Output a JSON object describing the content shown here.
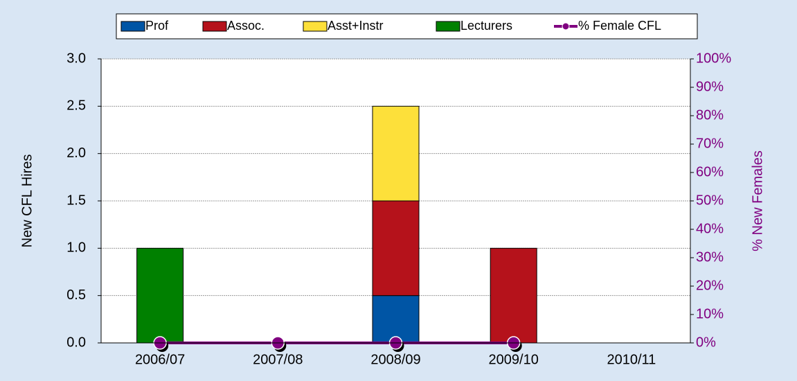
{
  "chart_data": {
    "type": "bar",
    "stacked": true,
    "categories": [
      "2006/07",
      "2007/08",
      "2008/09",
      "2009/10",
      "2010/11"
    ],
    "series": [
      {
        "name": "Prof",
        "color": "#0055a5",
        "values": [
          0,
          0,
          0.5,
          0,
          0
        ]
      },
      {
        "name": "Assoc.",
        "color": "#b5121b",
        "values": [
          0,
          0,
          1,
          1,
          0
        ]
      },
      {
        "name": "Asst+Instr",
        "color": "#fde03a",
        "values": [
          0,
          0,
          1,
          0,
          0
        ]
      },
      {
        "name": "Lecturers",
        "color": "#008000",
        "values": [
          1,
          0,
          0,
          0,
          0
        ]
      },
      {
        "name": "% Female CFL",
        "color": "#800080",
        "type": "line",
        "axis": "y2",
        "values": [
          0,
          0,
          0,
          0,
          null
        ]
      }
    ],
    "ylabel": "New CFL Hires",
    "y2label": "% New Females",
    "ylim": [
      0,
      3
    ],
    "yticks": [
      {
        "value": 0,
        "label": "0.0"
      },
      0.5,
      {
        "value": 1,
        "label": "1.0"
      },
      1.5,
      {
        "value": 2,
        "label": "2.0"
      },
      2.5,
      {
        "value": 3,
        "label": "3.0"
      }
    ],
    "y2lim": [
      0,
      100
    ],
    "y2ticks": [
      {
        "value": 0,
        "label": "0%"
      },
      {
        "value": 10,
        "label": "10%"
      },
      {
        "value": 20,
        "label": "20%"
      },
      {
        "value": 30,
        "label": "30%"
      },
      {
        "value": 40,
        "label": "40%"
      },
      {
        "value": 50,
        "label": "50%"
      },
      {
        "value": 60,
        "label": "60%"
      },
      {
        "value": 70,
        "label": "70%"
      },
      {
        "value": 80,
        "label": "80%"
      },
      {
        "value": 90,
        "label": "90%"
      },
      {
        "value": 100,
        "label": "100%"
      }
    ],
    "grid": true,
    "legend": "top"
  }
}
